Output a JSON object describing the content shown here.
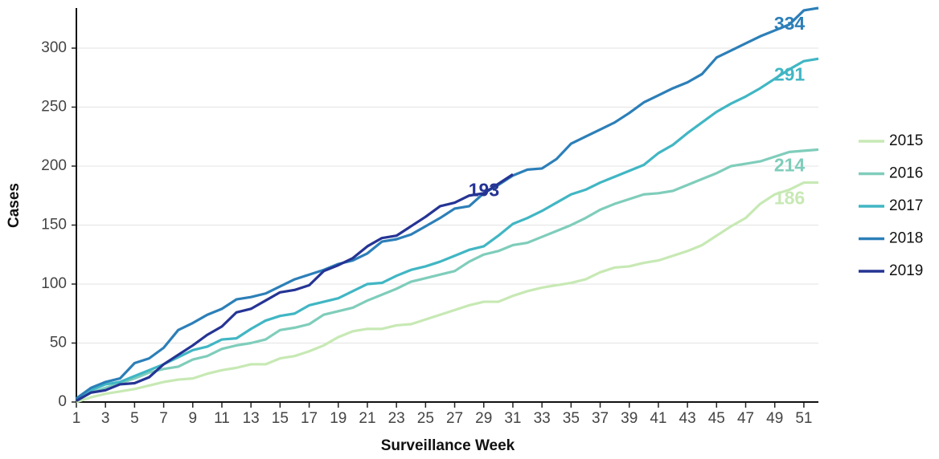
{
  "chart_data": {
    "type": "line",
    "x_label": "Surveillance Week",
    "y_label": "Cases",
    "x": [
      1,
      2,
      3,
      4,
      5,
      6,
      7,
      8,
      9,
      10,
      11,
      12,
      13,
      14,
      15,
      16,
      17,
      18,
      19,
      20,
      21,
      22,
      23,
      24,
      25,
      26,
      27,
      28,
      29,
      30,
      31,
      32,
      33,
      34,
      35,
      36,
      37,
      38,
      39,
      40,
      41,
      42,
      43,
      44,
      45,
      46,
      47,
      48,
      49,
      50,
      51,
      52
    ],
    "xlim": [
      1,
      52
    ],
    "xticks": [
      1,
      3,
      5,
      7,
      9,
      11,
      13,
      15,
      17,
      19,
      21,
      23,
      25,
      27,
      29,
      31,
      33,
      35,
      37,
      39,
      41,
      43,
      45,
      47,
      49,
      51
    ],
    "ylim": [
      0,
      334
    ],
    "yticks": [
      0,
      50,
      100,
      150,
      200,
      250,
      300
    ],
    "grid": true,
    "legend": "right",
    "series": [
      {
        "name": "2015",
        "color": "#c7e9b4",
        "values": [
          0,
          4,
          7,
          9,
          11,
          14,
          17,
          19,
          20,
          24,
          27,
          29,
          32,
          32,
          37,
          39,
          43,
          48,
          55,
          60,
          62,
          62,
          65,
          66,
          70,
          74,
          78,
          82,
          85,
          85,
          90,
          94,
          97,
          99,
          101,
          104,
          110,
          114,
          115,
          118,
          120,
          124,
          128,
          133,
          141,
          149,
          156,
          168,
          176,
          180,
          186,
          186
        ]
      },
      {
        "name": "2016",
        "color": "#7fcdbb",
        "values": [
          1,
          8,
          12,
          16,
          20,
          25,
          28,
          30,
          36,
          39,
          45,
          48,
          50,
          53,
          61,
          63,
          66,
          74,
          77,
          80,
          86,
          91,
          96,
          102,
          105,
          108,
          111,
          119,
          125,
          128,
          133,
          135,
          140,
          145,
          150,
          156,
          163,
          168,
          172,
          176,
          177,
          179,
          184,
          189,
          194,
          200,
          202,
          204,
          208,
          212,
          213,
          214
        ]
      },
      {
        "name": "2017",
        "color": "#41b6c4",
        "values": [
          2,
          10,
          15,
          17,
          22,
          27,
          32,
          38,
          44,
          47,
          53,
          54,
          62,
          69,
          73,
          75,
          82,
          85,
          88,
          94,
          100,
          101,
          107,
          112,
          115,
          119,
          124,
          129,
          132,
          141,
          151,
          156,
          162,
          169,
          176,
          180,
          186,
          191,
          196,
          201,
          211,
          218,
          228,
          237,
          246,
          253,
          259,
          266,
          274,
          282,
          289,
          291
        ]
      },
      {
        "name": "2018",
        "color": "#2c7fb8",
        "values": [
          3,
          12,
          17,
          20,
          33,
          37,
          46,
          61,
          67,
          74,
          79,
          87,
          89,
          92,
          98,
          104,
          108,
          112,
          117,
          120,
          126,
          136,
          138,
          142,
          149,
          156,
          164,
          166,
          177,
          184,
          192,
          197,
          198,
          206,
          219,
          225,
          231,
          237,
          245,
          254,
          260,
          266,
          271,
          278,
          292,
          298,
          304,
          310,
          315,
          320,
          332,
          334
        ]
      },
      {
        "name": "2019",
        "color": "#253494",
        "values": [
          1,
          8,
          10,
          15,
          16,
          21,
          32,
          40,
          48,
          57,
          64,
          76,
          79,
          86,
          93,
          95,
          99,
          111,
          116,
          122,
          132,
          139,
          141,
          149,
          157,
          166,
          169,
          175,
          177,
          185,
          193,
          null,
          null,
          null,
          null,
          null,
          null,
          null,
          null,
          null,
          null,
          null,
          null,
          null,
          null,
          null,
          null,
          null,
          null,
          null,
          null,
          null
        ]
      }
    ]
  }
}
